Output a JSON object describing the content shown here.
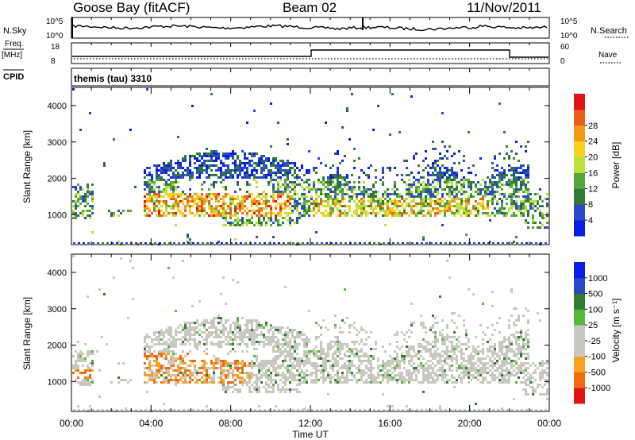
{
  "header": {
    "station": "Goose Bay (fitACF)",
    "beam": "Beam 02",
    "date": "11/Nov/2011"
  },
  "noise_panel": {
    "left_label": "N.Sky",
    "right_label": "N.Search",
    "left_ticks": [
      "10^5",
      "10^0"
    ],
    "right_ticks": [
      "10^5",
      "10^0"
    ]
  },
  "freq_panel": {
    "left_label_top": "Freq.",
    "left_label_units": "[MHz]",
    "right_label": "Nave",
    "left_ticks": [
      "18",
      "8"
    ],
    "right_ticks": [
      "60",
      "0"
    ],
    "cpid_label": "CPID"
  },
  "cpid_text": "themis (tau) 3310",
  "colors": {
    "power": [
      "#0a1fe6",
      "#2a48c8",
      "#2e7d32",
      "#56a63c",
      "#b9e23b",
      "#f7d31f",
      "#f39a17",
      "#e8601a",
      "#e01515"
    ],
    "velocity": [
      "#e01515",
      "#f06a12",
      "#f7a21e",
      "#c8c8c0",
      "#c8c8c0",
      "#58b83a",
      "#2e7d32",
      "#2a48c8",
      "#0a1fe6"
    ]
  },
  "chart_data": [
    {
      "type": "heatmap",
      "panel": "power",
      "xlabel": "Time UT",
      "ylabel": "Slant Range [km]",
      "x_ticks": [
        "00:00",
        "04:00",
        "08:00",
        "12:00",
        "16:00",
        "20:00",
        "00:00"
      ],
      "y_ticks": [
        1000,
        2000,
        3000,
        4000
      ],
      "ylim": [
        180,
        4500
      ],
      "xlim": [
        0,
        24
      ],
      "colorbar": {
        "label": "Power [dB]",
        "ticks": [
          "4",
          "8",
          "12",
          "16",
          "20",
          "24",
          "28"
        ]
      }
    },
    {
      "type": "heatmap",
      "panel": "velocity",
      "xlabel": "Time UT",
      "ylabel": "Slant Range [km]",
      "x_ticks": [
        "00:00",
        "04:00",
        "08:00",
        "12:00",
        "16:00",
        "20:00",
        "00:00"
      ],
      "y_ticks": [
        1000,
        2000,
        3000,
        4000
      ],
      "ylim": [
        180,
        4500
      ],
      "xlim": [
        0,
        24
      ],
      "colorbar": {
        "label": "Velocity [m s⁻¹]",
        "ticks": [
          "1000",
          "500",
          "100",
          "25",
          "-25",
          "-100",
          "-500",
          "-1000"
        ]
      }
    }
  ]
}
